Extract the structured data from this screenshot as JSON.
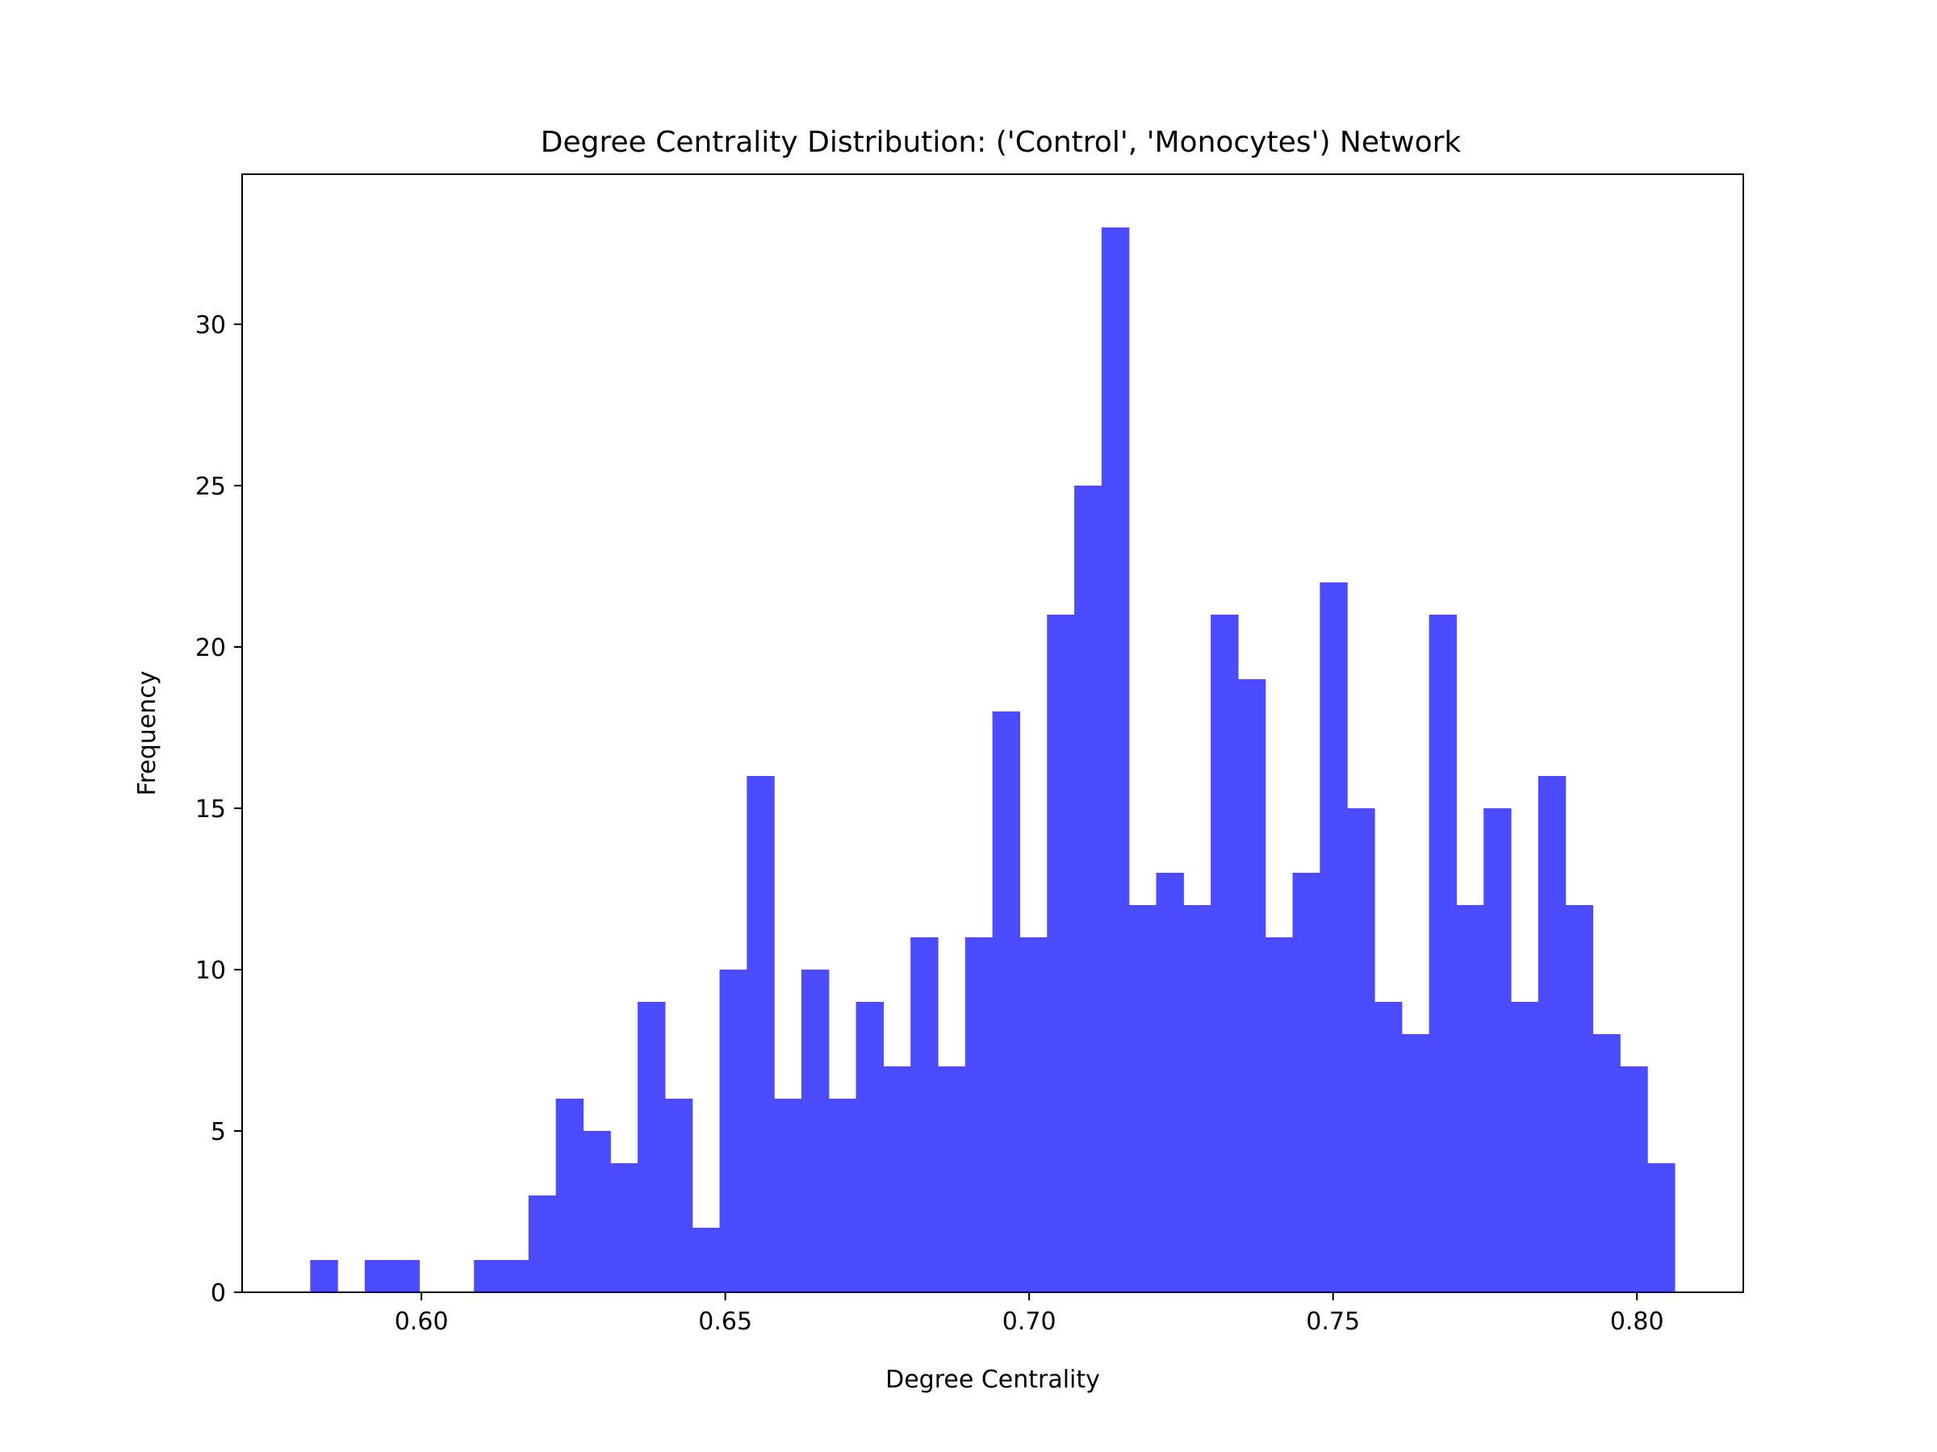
{
  "chart_data": {
    "type": "bar",
    "title": "Degree Centrality Distribution: ('Control', 'Monocytes') Network",
    "xlabel": "Degree Centrality",
    "ylabel": "Frequency",
    "xlim": [
      0.5705,
      0.8175
    ],
    "ylim": [
      0,
      34.65
    ],
    "x_ticks": [
      0.6,
      0.65,
      0.7,
      0.75,
      0.8
    ],
    "x_tick_labels": [
      "0.60",
      "0.65",
      "0.70",
      "0.75",
      "0.80"
    ],
    "y_ticks": [
      0,
      5,
      10,
      15,
      20,
      25,
      30
    ],
    "y_tick_labels": [
      "0",
      "5",
      "10",
      "15",
      "20",
      "25",
      "30"
    ],
    "bin_start": 0.5817,
    "bin_width": 0.00449,
    "values": [
      1,
      0,
      1,
      1,
      0,
      0,
      1,
      1,
      3,
      6,
      5,
      4,
      9,
      6,
      2,
      10,
      16,
      6,
      10,
      6,
      9,
      7,
      11,
      7,
      11,
      18,
      11,
      21,
      25,
      33,
      12,
      13,
      12,
      21,
      19,
      11,
      13,
      22,
      15,
      9,
      8,
      21,
      12,
      15,
      9,
      16,
      12,
      8,
      7,
      4
    ],
    "bar_color": "#4b4bff",
    "grid": false,
    "legend": "none"
  }
}
